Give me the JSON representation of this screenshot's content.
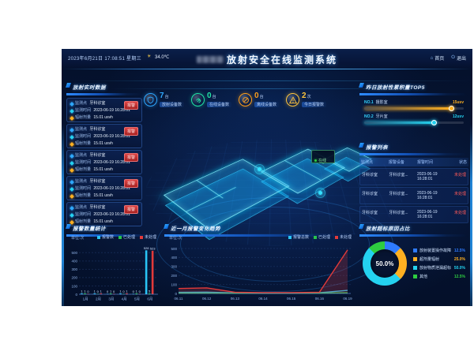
{
  "header": {
    "datetime": "2023年6月21日 17:08:51 星期三",
    "weather_icon": "sun-icon",
    "temperature": "34.0℃",
    "title": "放射安全在线监测系统",
    "nav": [
      {
        "label": "首页",
        "icon": "home-icon"
      },
      {
        "label": "退出",
        "icon": "power-icon"
      }
    ]
  },
  "realtime": {
    "title": "放射实时数据",
    "labels": {
      "point": "监测点",
      "time": "监测时间",
      "dose": "辐射剂量"
    },
    "badge": "报警",
    "rows": [
      {
        "point": "牙科诊室",
        "time": "2023-06-19 16:28:01",
        "dose": "15.01 usvh"
      },
      {
        "point": "牙科诊室",
        "time": "2023-06-19 16:28:01",
        "dose": "15.01 usvh"
      },
      {
        "point": "牙科诊室",
        "time": "2023-06-19 16:28:01",
        "dose": "15.01 usvh"
      },
      {
        "point": "牙科诊室",
        "time": "2023-06-19 16:28:01",
        "dose": "15.01 usvh"
      },
      {
        "point": "牙科诊室",
        "time": "2023-06-19 16:28:01",
        "dose": "15.01 usvh"
      }
    ]
  },
  "stats": [
    {
      "value": "7",
      "unit": "台",
      "label": "放射设备数",
      "color": "#2ea8ff",
      "icon": "shield-icon"
    },
    {
      "value": "0",
      "unit": "台",
      "label": "在线设备数",
      "color": "#21e6a5",
      "icon": "link-icon"
    },
    {
      "value": "0",
      "unit": "台",
      "label": "离线设备数",
      "color": "#ff9f1a",
      "icon": "offline-icon"
    },
    {
      "value": "2",
      "unit": "次",
      "label": "今日报警数",
      "color": "#ffc53d",
      "icon": "alarm-icon"
    }
  ],
  "map": {
    "popup_status": "在线"
  },
  "top5": {
    "title": "昨日放射性累积量TOP5",
    "items": [
      {
        "rank": "NO.1",
        "name": "摄影室",
        "value": "15usv",
        "color": "#ffb021",
        "pct": 88
      },
      {
        "rank": "NO.2",
        "name": "牙片室",
        "value": "12usv",
        "color": "#24d2f0",
        "pct": 71
      }
    ]
  },
  "alarms": {
    "title": "报警列表",
    "headers": [
      "监测点",
      "报警设备",
      "报警时间",
      "状态"
    ],
    "rows": [
      {
        "point": "牙科诊室",
        "device": "牙科诊室...",
        "time": "2023-06-19 16:28:01",
        "status": "未处理"
      },
      {
        "point": "牙科诊室",
        "device": "牙科诊室...",
        "time": "2023-06-19 16:28:01",
        "status": "未处理"
      },
      {
        "point": "牙科诊室",
        "device": "牙科诊室...",
        "time": "2023-06-19 16:28:01",
        "status": "未处理"
      }
    ]
  },
  "chart_data": [
    {
      "type": "bar",
      "title": "报警数量统计",
      "unit_label": "单位:次",
      "categories": [
        "1月",
        "2月",
        "3月",
        "4月",
        "5月",
        "6月"
      ],
      "series": [
        {
          "name": "报警数",
          "color": "#29c4f5",
          "values": [
            1,
            1,
            0,
            1,
            0,
            528
          ]
        },
        {
          "name": "已处理",
          "color": "#27c24c",
          "values": [
            1,
            0,
            1,
            0,
            1,
            5
          ]
        },
        {
          "name": "未处理",
          "color": "#e23a3a",
          "values": [
            0,
            1,
            0,
            1,
            0,
            523
          ]
        }
      ],
      "ylim": [
        0,
        550
      ],
      "yticks": [
        0,
        100,
        200,
        300,
        400,
        500
      ],
      "legend_position": "top"
    },
    {
      "type": "line",
      "title": "近一月报警变化趋势",
      "unit_label": "单位:次",
      "x": [
        "06.11",
        "06.12",
        "06.13",
        "06.14",
        "06.15",
        "06.16",
        "06.19"
      ],
      "series": [
        {
          "name": "报警总数",
          "color": "#29c4f5",
          "values": [
            12,
            15,
            6,
            4,
            5,
            8,
            35
          ]
        },
        {
          "name": "已处理",
          "color": "#27c24c",
          "values": [
            4,
            4,
            3,
            3,
            3,
            4,
            8
          ]
        },
        {
          "name": "未处理",
          "color": "#e23a3a",
          "values": [
            55,
            62,
            14,
            9,
            9,
            14,
            485
          ]
        }
      ],
      "ylim": [
        0,
        500
      ],
      "yticks": [
        0,
        100,
        200,
        300,
        400,
        500
      ],
      "legend_position": "top-right"
    },
    {
      "type": "pie",
      "title": "放射超标原因占比",
      "center_label": "50.0%",
      "slices": [
        {
          "name": "放射装置操作故障",
          "value": 12.5,
          "pct_label": "12.5%",
          "color": "#2e7bff"
        },
        {
          "name": "超剂量辐射",
          "value": 25.0,
          "pct_label": "25.0%",
          "color": "#ffb021"
        },
        {
          "name": "放射物质泄漏超标",
          "value": 50.0,
          "pct_label": "50.0%",
          "color": "#24d2f0"
        },
        {
          "name": "其他",
          "value": 12.5,
          "pct_label": "12.5%",
          "color": "#2ecc40"
        }
      ]
    }
  ]
}
